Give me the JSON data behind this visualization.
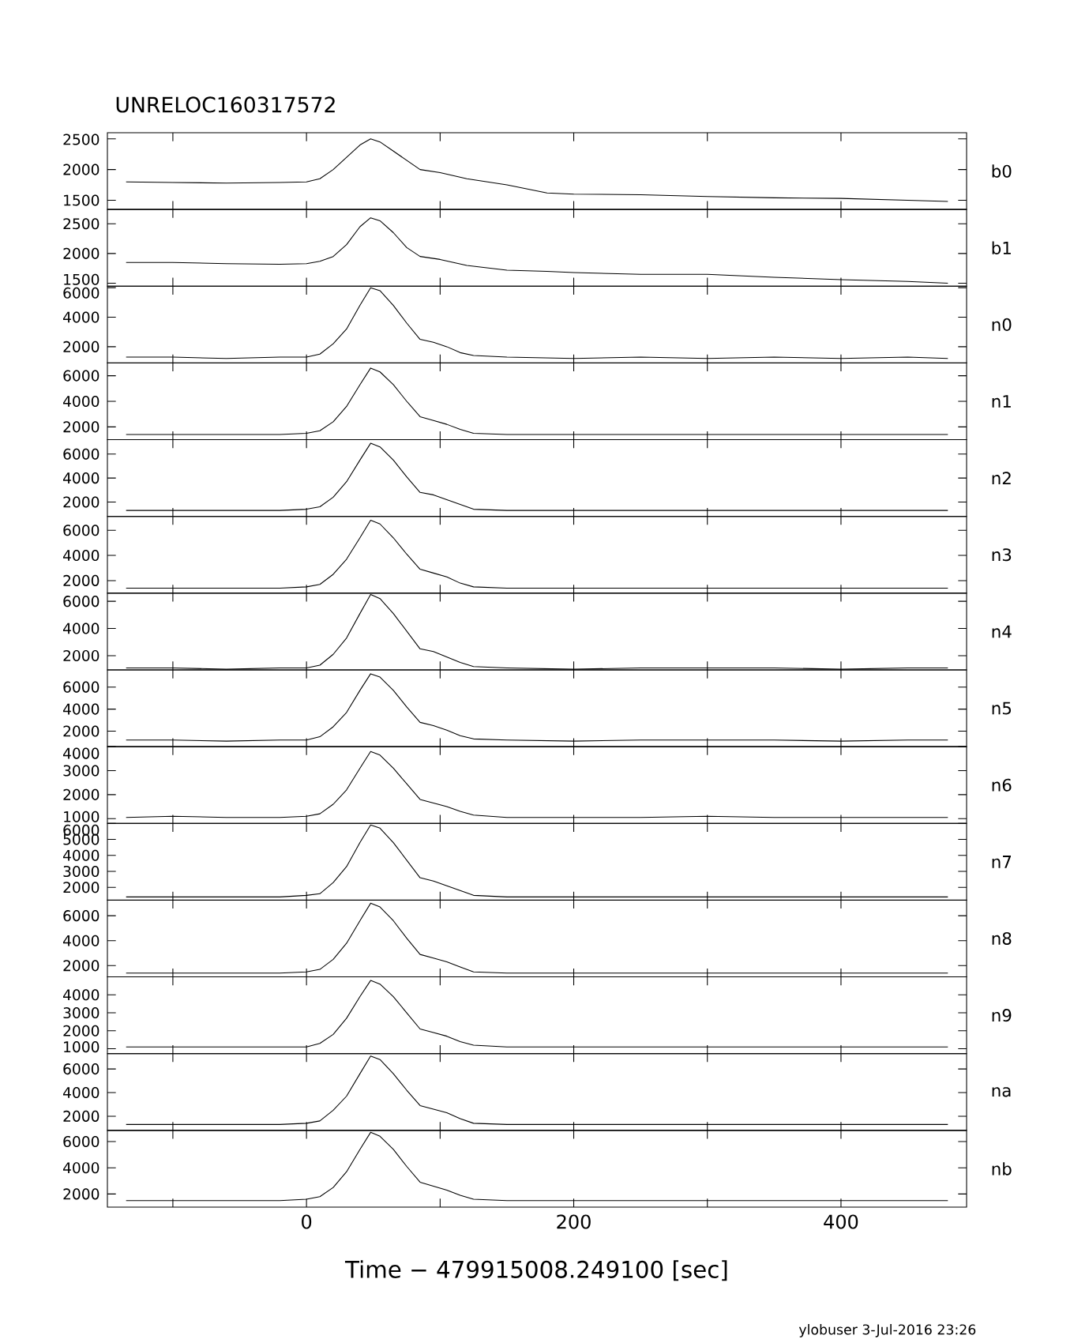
{
  "chart_data": [
    {
      "type": "line",
      "annotations": [
        "UNRELOC160317572"
      ],
      "tick_labels": "y",
      "xlim": [
        -149,
        494
      ],
      "xticks": [
        {
          "value": -100,
          "label": null
        },
        0,
        {
          "value": 100,
          "label": null
        },
        200,
        {
          "value": 300,
          "label": null
        },
        400
      ],
      "ylim": [
        1350,
        2600
      ],
      "yticks": [
        1500,
        2000,
        2500
      ],
      "x": [
        -135,
        -100,
        -60,
        -20,
        0,
        10,
        20,
        30,
        40,
        48,
        55,
        65,
        75,
        85,
        100,
        120,
        150,
        180,
        200,
        250,
        300,
        350,
        400,
        450,
        480
      ],
      "series": [
        {
          "name": "b0",
          "color": "#000000",
          "values": [
            1800,
            1790,
            1780,
            1790,
            1800,
            1850,
            2000,
            2200,
            2400,
            2500,
            2450,
            2300,
            2150,
            2000,
            1950,
            1850,
            1750,
            1620,
            1600,
            1590,
            1560,
            1540,
            1530,
            1500,
            1480
          ]
        }
      ]
    },
    {
      "type": "line",
      "tick_labels": "y",
      "xlim": [
        -149,
        494
      ],
      "xticks": [
        {
          "value": -100,
          "label": null
        },
        0,
        {
          "value": 100,
          "label": null
        },
        200,
        {
          "value": 300,
          "label": null
        },
        400
      ],
      "ylim": [
        1450,
        2740
      ],
      "yticks": [
        1500,
        2000,
        2500
      ],
      "x": [
        -135,
        -100,
        -60,
        -20,
        0,
        10,
        20,
        30,
        40,
        48,
        55,
        65,
        75,
        85,
        100,
        120,
        150,
        180,
        200,
        250,
        300,
        350,
        400,
        450,
        480
      ],
      "series": [
        {
          "name": "b1",
          "color": "#000000",
          "values": [
            1850,
            1850,
            1830,
            1820,
            1830,
            1870,
            1950,
            2150,
            2450,
            2600,
            2550,
            2350,
            2100,
            1950,
            1900,
            1800,
            1720,
            1700,
            1680,
            1650,
            1650,
            1600,
            1560,
            1530,
            1500
          ]
        }
      ]
    },
    {
      "type": "line",
      "tick_labels": "y",
      "xlim": [
        -149,
        494
      ],
      "xticks": [
        {
          "value": -100,
          "label": null
        },
        0,
        {
          "value": 100,
          "label": null
        },
        200,
        {
          "value": 300,
          "label": null
        },
        400
      ],
      "ylim": [
        900,
        6100
      ],
      "yticks": [
        2000,
        4000,
        6000
      ],
      "x": [
        -135,
        -100,
        -60,
        -20,
        0,
        10,
        20,
        30,
        40,
        48,
        55,
        65,
        75,
        85,
        95,
        105,
        115,
        125,
        150,
        200,
        250,
        300,
        350,
        400,
        450,
        480
      ],
      "series": [
        {
          "name": "n0",
          "color": "#000000",
          "values": [
            1300,
            1300,
            1200,
            1300,
            1300,
            1500,
            2200,
            3200,
            4800,
            6000,
            5800,
            4800,
            3600,
            2500,
            2300,
            2000,
            1600,
            1400,
            1300,
            1200,
            1300,
            1200,
            1300,
            1200,
            1300,
            1200
          ]
        }
      ]
    },
    {
      "type": "line",
      "tick_labels": "y",
      "xlim": [
        -149,
        494
      ],
      "xticks": [
        {
          "value": -100,
          "label": null
        },
        0,
        {
          "value": 100,
          "label": null
        },
        200,
        {
          "value": 300,
          "label": null
        },
        400
      ],
      "ylim": [
        1000,
        7000
      ],
      "yticks": [
        2000,
        4000,
        6000
      ],
      "x": [
        -135,
        -100,
        -60,
        -20,
        0,
        10,
        20,
        30,
        40,
        48,
        55,
        65,
        75,
        85,
        95,
        105,
        115,
        125,
        150,
        200,
        250,
        300,
        350,
        400,
        450,
        480
      ],
      "series": [
        {
          "name": "n1",
          "color": "#000000",
          "values": [
            1400,
            1400,
            1400,
            1400,
            1500,
            1700,
            2400,
            3600,
            5300,
            6600,
            6300,
            5300,
            4000,
            2800,
            2500,
            2200,
            1800,
            1500,
            1400,
            1400,
            1400,
            1400,
            1400,
            1400,
            1400,
            1400
          ]
        }
      ]
    },
    {
      "type": "line",
      "tick_labels": "y",
      "xlim": [
        -149,
        494
      ],
      "xticks": [
        {
          "value": -100,
          "label": null
        },
        0,
        {
          "value": 100,
          "label": null
        },
        200,
        {
          "value": 300,
          "label": null
        },
        400
      ],
      "ylim": [
        800,
        7200
      ],
      "yticks": [
        2000,
        4000,
        6000
      ],
      "x": [
        -135,
        -100,
        -60,
        -20,
        0,
        10,
        20,
        30,
        40,
        48,
        55,
        65,
        75,
        85,
        95,
        105,
        115,
        125,
        150,
        200,
        250,
        300,
        350,
        400,
        450,
        480
      ],
      "series": [
        {
          "name": "n2",
          "color": "#000000",
          "values": [
            1300,
            1300,
            1300,
            1300,
            1400,
            1600,
            2400,
            3700,
            5500,
            6900,
            6600,
            5500,
            4100,
            2800,
            2600,
            2200,
            1800,
            1400,
            1300,
            1300,
            1300,
            1300,
            1300,
            1300,
            1300,
            1300
          ]
        }
      ]
    },
    {
      "type": "line",
      "tick_labels": "y",
      "xlim": [
        -149,
        494
      ],
      "xticks": [
        {
          "value": -100,
          "label": null
        },
        0,
        {
          "value": 100,
          "label": null
        },
        200,
        {
          "value": 300,
          "label": null
        },
        400
      ],
      "ylim": [
        1000,
        7100
      ],
      "yticks": [
        2000,
        4000,
        6000
      ],
      "x": [
        -135,
        -100,
        -60,
        -20,
        0,
        10,
        20,
        30,
        40,
        48,
        55,
        65,
        75,
        85,
        95,
        105,
        115,
        125,
        150,
        200,
        250,
        300,
        350,
        400,
        450,
        480
      ],
      "series": [
        {
          "name": "n3",
          "color": "#000000",
          "values": [
            1400,
            1400,
            1400,
            1400,
            1500,
            1700,
            2500,
            3700,
            5400,
            6800,
            6500,
            5400,
            4100,
            2900,
            2600,
            2300,
            1800,
            1500,
            1400,
            1400,
            1400,
            1400,
            1400,
            1400,
            1400,
            1400
          ]
        }
      ]
    },
    {
      "type": "line",
      "tick_labels": "y",
      "xlim": [
        -149,
        494
      ],
      "xticks": [
        {
          "value": -100,
          "label": null
        },
        0,
        {
          "value": 100,
          "label": null
        },
        200,
        {
          "value": 300,
          "label": null
        },
        400
      ],
      "ylim": [
        950,
        6600
      ],
      "yticks": [
        2000,
        4000,
        6000
      ],
      "x": [
        -135,
        -100,
        -60,
        -20,
        0,
        10,
        20,
        30,
        40,
        48,
        55,
        65,
        75,
        85,
        95,
        105,
        115,
        125,
        150,
        200,
        250,
        300,
        350,
        400,
        450,
        480
      ],
      "series": [
        {
          "name": "n4",
          "color": "#000000",
          "values": [
            1100,
            1100,
            1000,
            1100,
            1100,
            1300,
            2100,
            3300,
            5100,
            6500,
            6200,
            5100,
            3800,
            2500,
            2300,
            1900,
            1500,
            1200,
            1100,
            1000,
            1100,
            1100,
            1100,
            1000,
            1100,
            1100
          ]
        }
      ]
    },
    {
      "type": "line",
      "tick_labels": "y",
      "xlim": [
        -149,
        494
      ],
      "xticks": [
        {
          "value": -100,
          "label": null
        },
        0,
        {
          "value": 100,
          "label": null
        },
        200,
        {
          "value": 300,
          "label": null
        },
        400
      ],
      "ylim": [
        600,
        7550
      ],
      "yticks": [
        2000,
        4000,
        6000
      ],
      "x": [
        -135,
        -100,
        -60,
        -20,
        0,
        10,
        20,
        30,
        40,
        48,
        55,
        65,
        75,
        85,
        95,
        105,
        115,
        125,
        150,
        200,
        250,
        300,
        350,
        400,
        450,
        480
      ],
      "series": [
        {
          "name": "n5",
          "color": "#000000",
          "values": [
            1200,
            1200,
            1100,
            1200,
            1200,
            1500,
            2400,
            3700,
            5700,
            7200,
            6900,
            5700,
            4200,
            2800,
            2500,
            2100,
            1600,
            1300,
            1200,
            1100,
            1200,
            1200,
            1200,
            1100,
            1200,
            1200
          ]
        }
      ]
    },
    {
      "type": "line",
      "tick_labels": "y",
      "xlim": [
        -149,
        494
      ],
      "xticks": [
        {
          "value": -100,
          "label": null
        },
        0,
        {
          "value": 100,
          "label": null
        },
        200,
        {
          "value": 300,
          "label": null
        },
        400
      ],
      "ylim": [
        800,
        4000
      ],
      "yticks": [
        1000,
        2000,
        3000,
        4000
      ],
      "x": [
        -135,
        -100,
        -60,
        -20,
        0,
        10,
        20,
        30,
        40,
        48,
        55,
        65,
        75,
        85,
        95,
        105,
        115,
        125,
        150,
        200,
        250,
        300,
        350,
        400,
        450,
        480
      ],
      "series": [
        {
          "name": "n6",
          "color": "#000000",
          "values": [
            1050,
            1100,
            1050,
            1050,
            1100,
            1200,
            1600,
            2200,
            3100,
            3800,
            3650,
            3100,
            2450,
            1800,
            1650,
            1500,
            1300,
            1150,
            1050,
            1050,
            1050,
            1100,
            1050,
            1050,
            1050,
            1050
          ]
        }
      ]
    },
    {
      "type": "line",
      "tick_labels": "y",
      "xlim": [
        -149,
        494
      ],
      "xticks": [
        {
          "value": -100,
          "label": null
        },
        0,
        {
          "value": 100,
          "label": null
        },
        200,
        {
          "value": 300,
          "label": null
        },
        400
      ],
      "ylim": [
        1200,
        6000
      ],
      "yticks": [
        2000,
        3000,
        4000,
        5000,
        6000
      ],
      "x": [
        -135,
        -100,
        -60,
        -20,
        0,
        10,
        20,
        30,
        40,
        48,
        55,
        65,
        75,
        85,
        95,
        105,
        115,
        125,
        150,
        200,
        250,
        300,
        350,
        400,
        450,
        480
      ],
      "series": [
        {
          "name": "n7",
          "color": "#000000",
          "values": [
            1400,
            1400,
            1400,
            1400,
            1500,
            1600,
            2300,
            3300,
            4800,
            5900,
            5700,
            4800,
            3700,
            2600,
            2400,
            2100,
            1800,
            1500,
            1400,
            1400,
            1400,
            1400,
            1400,
            1400,
            1400,
            1400
          ]
        }
      ]
    },
    {
      "type": "line",
      "tick_labels": "y",
      "xlim": [
        -149,
        494
      ],
      "xticks": [
        {
          "value": -100,
          "label": null
        },
        0,
        {
          "value": 100,
          "label": null
        },
        200,
        {
          "value": 300,
          "label": null
        },
        400
      ],
      "ylim": [
        1100,
        7250
      ],
      "yticks": [
        2000,
        4000,
        6000
      ],
      "x": [
        -135,
        -100,
        -60,
        -20,
        0,
        10,
        20,
        30,
        40,
        48,
        55,
        65,
        75,
        85,
        95,
        105,
        115,
        125,
        150,
        200,
        250,
        300,
        350,
        400,
        450,
        480
      ],
      "series": [
        {
          "name": "n8",
          "color": "#000000",
          "values": [
            1400,
            1400,
            1400,
            1400,
            1500,
            1700,
            2500,
            3800,
            5600,
            7000,
            6700,
            5600,
            4200,
            2900,
            2600,
            2300,
            1900,
            1500,
            1400,
            1400,
            1400,
            1400,
            1400,
            1400,
            1400,
            1400
          ]
        }
      ]
    },
    {
      "type": "line",
      "tick_labels": "y",
      "xlim": [
        -149,
        494
      ],
      "xticks": [
        {
          "value": -100,
          "label": null
        },
        0,
        {
          "value": 100,
          "label": null
        },
        200,
        {
          "value": 300,
          "label": null
        },
        400
      ],
      "ylim": [
        730,
        5000
      ],
      "yticks": [
        1000,
        2000,
        3000,
        4000
      ],
      "x": [
        -135,
        -100,
        -60,
        -20,
        0,
        10,
        20,
        30,
        40,
        48,
        55,
        65,
        75,
        85,
        95,
        105,
        115,
        125,
        150,
        200,
        250,
        300,
        350,
        400,
        450,
        480
      ],
      "series": [
        {
          "name": "n9",
          "color": "#000000",
          "values": [
            1100,
            1100,
            1100,
            1100,
            1100,
            1300,
            1800,
            2700,
            3900,
            4800,
            4600,
            3900,
            3000,
            2100,
            1900,
            1700,
            1400,
            1200,
            1100,
            1100,
            1100,
            1100,
            1100,
            1100,
            1100,
            1100
          ]
        }
      ]
    },
    {
      "type": "line",
      "tick_labels": "y",
      "xlim": [
        -149,
        494
      ],
      "xticks": [
        {
          "value": -100,
          "label": null
        },
        0,
        {
          "value": 100,
          "label": null
        },
        200,
        {
          "value": 300,
          "label": null
        },
        400
      ],
      "ylim": [
        800,
        7300
      ],
      "yticks": [
        2000,
        4000,
        6000
      ],
      "x": [
        -135,
        -100,
        -60,
        -20,
        0,
        10,
        20,
        30,
        40,
        48,
        55,
        65,
        75,
        85,
        95,
        105,
        115,
        125,
        150,
        200,
        250,
        300,
        350,
        400,
        450,
        480
      ],
      "series": [
        {
          "name": "na",
          "color": "#000000",
          "values": [
            1300,
            1300,
            1300,
            1300,
            1400,
            1600,
            2500,
            3700,
            5600,
            7100,
            6800,
            5600,
            4200,
            2900,
            2600,
            2300,
            1800,
            1400,
            1300,
            1300,
            1300,
            1300,
            1300,
            1300,
            1300,
            1300
          ]
        }
      ]
    },
    {
      "type": "line",
      "xlabel": "Time − 479915008.249100 [sec]",
      "annotations": [
        "ylobuser  3-Jul-2016 23:26"
      ],
      "xlim": [
        -149,
        494
      ],
      "xticks": [
        {
          "value": -100,
          "label": null
        },
        0,
        {
          "value": 100,
          "label": null
        },
        200,
        {
          "value": 300,
          "label": null
        },
        400
      ],
      "ylim": [
        1000,
        6850
      ],
      "yticks": [
        2000,
        4000,
        6000
      ],
      "x": [
        -135,
        -100,
        -60,
        -20,
        0,
        10,
        20,
        30,
        40,
        48,
        55,
        65,
        75,
        85,
        95,
        105,
        115,
        125,
        150,
        200,
        250,
        300,
        350,
        400,
        450,
        480
      ],
      "series": [
        {
          "name": "nb",
          "color": "#000000",
          "values": [
            1500,
            1500,
            1500,
            1500,
            1600,
            1800,
            2500,
            3700,
            5400,
            6700,
            6400,
            5400,
            4100,
            2900,
            2600,
            2300,
            1900,
            1600,
            1500,
            1500,
            1500,
            1500,
            1500,
            1500,
            1500,
            1500
          ]
        }
      ]
    }
  ]
}
